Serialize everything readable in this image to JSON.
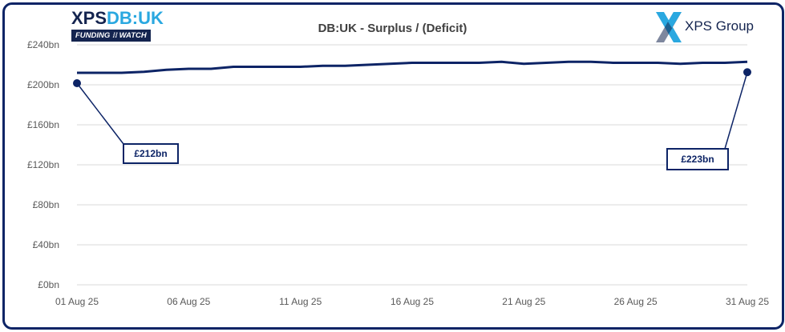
{
  "logo_left": {
    "brand_main": "XPS",
    "brand_accent": "DB:UK",
    "tagline": "FUNDING ⁝⁝ WATCH"
  },
  "logo_right": {
    "icon": "xps-x-logo-icon",
    "text": "XPS Group"
  },
  "colors": {
    "line": "#0d2466",
    "frame": "#0d2466",
    "grid": "#d9d9d9",
    "logo_accent": "#2aa8e0"
  },
  "chart_data": {
    "type": "line",
    "title": "DB:UK - Surplus / (Deficit)",
    "xlabel": "",
    "ylabel": "",
    "ylim": [
      0,
      240
    ],
    "yticks": [
      "£0bn",
      "£40bn",
      "£80bn",
      "£120bn",
      "£160bn",
      "£200bn",
      "£240bn"
    ],
    "ytick_values": [
      0,
      40,
      80,
      120,
      160,
      200,
      240
    ],
    "xticks": [
      "01 Aug 25",
      "06 Aug 25",
      "11 Aug 25",
      "16 Aug 25",
      "21 Aug 25",
      "26 Aug 25",
      "31 Aug 25"
    ],
    "xtick_days": [
      1,
      6,
      11,
      16,
      21,
      26,
      31
    ],
    "grid": true,
    "series": [
      {
        "name": "",
        "days": [
          1,
          2,
          3,
          4,
          5,
          6,
          7,
          8,
          9,
          10,
          11,
          12,
          13,
          14,
          15,
          16,
          17,
          18,
          19,
          20,
          21,
          22,
          23,
          24,
          25,
          26,
          27,
          28,
          29,
          30,
          31
        ],
        "values": [
          212,
          212,
          212,
          213,
          215,
          216,
          216,
          218,
          218,
          218,
          218,
          219,
          219,
          220,
          221,
          222,
          222,
          222,
          222,
          223,
          221,
          222,
          223,
          223,
          222,
          222,
          222,
          221,
          222,
          222,
          223
        ]
      }
    ],
    "annotations": [
      {
        "day": 1,
        "value": 212,
        "label": "£212bn"
      },
      {
        "day": 31,
        "value": 223,
        "label": "£223bn"
      }
    ]
  }
}
